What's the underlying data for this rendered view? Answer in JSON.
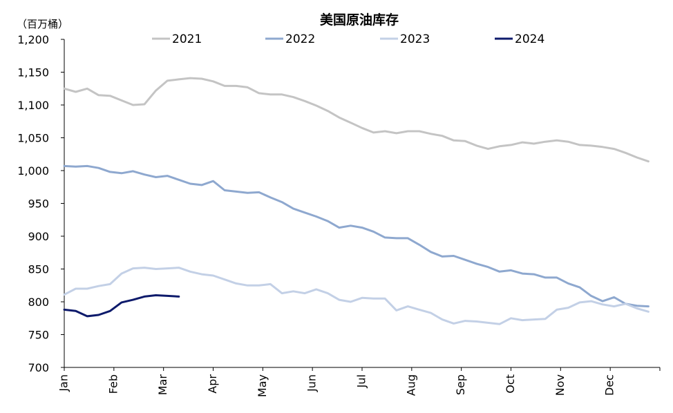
{
  "chart_data": {
    "type": "line",
    "title": "美国原油库存",
    "ylabel": "（百万桶）",
    "ylim": [
      700,
      1200
    ],
    "yticks": [
      700,
      750,
      800,
      850,
      900,
      950,
      1000,
      1050,
      1100,
      1150,
      1200
    ],
    "ytick_labels": [
      "700",
      "750",
      "800",
      "850",
      "900",
      "950",
      "1,000",
      "1,050",
      "1,100",
      "1,150",
      "1,200"
    ],
    "x_unit": "week_of_year",
    "xlim": [
      1,
      53
    ],
    "month_labels": [
      "Jan",
      "Feb",
      "Mar",
      "Apr",
      "May",
      "Jun",
      "Jul",
      "Aug",
      "Sep",
      "Oct",
      "Nov",
      "Dec"
    ],
    "grid": false,
    "legend_position": "top",
    "series": [
      {
        "name": "2021",
        "color": "#c4c4c4",
        "values": [
          1125,
          1120,
          1125,
          1115,
          1114,
          1107,
          1100,
          1101,
          1122,
          1137,
          1139,
          1141,
          1140,
          1136,
          1129,
          1129,
          1127,
          1118,
          1116,
          1116,
          1112,
          1106,
          1099,
          1091,
          1081,
          1073,
          1065,
          1058,
          1060,
          1057,
          1060,
          1060,
          1056,
          1053,
          1046,
          1045,
          1038,
          1033,
          1037,
          1039,
          1043,
          1041,
          1044,
          1046,
          1044,
          1039,
          1038,
          1036,
          1033,
          1027,
          1020,
          1014
        ]
      },
      {
        "name": "2022",
        "color": "#8ea8cf",
        "values": [
          1007,
          1006,
          1007,
          1004,
          998,
          996,
          999,
          994,
          990,
          992,
          986,
          980,
          978,
          984,
          970,
          968,
          966,
          967,
          959,
          952,
          942,
          936,
          930,
          923,
          913,
          916,
          913,
          907,
          898,
          897,
          897,
          887,
          876,
          869,
          870,
          864,
          858,
          853,
          846,
          848,
          843,
          842,
          837,
          837,
          828,
          822,
          809,
          801,
          807,
          797,
          794,
          793
        ]
      },
      {
        "name": "2023",
        "color": "#c3d0e6",
        "values": [
          811,
          820,
          820,
          824,
          827,
          843,
          851,
          852,
          850,
          851,
          852,
          846,
          842,
          840,
          834,
          828,
          825,
          825,
          827,
          813,
          816,
          813,
          819,
          813,
          803,
          800,
          806,
          805,
          805,
          787,
          793,
          788,
          783,
          773,
          767,
          771,
          770,
          768,
          766,
          775,
          772,
          773,
          774,
          788,
          791,
          799,
          801,
          796,
          793,
          797,
          790,
          785
        ]
      },
      {
        "name": "2024",
        "color": "#0d1a6b",
        "values": [
          788,
          786,
          778,
          780,
          786,
          799,
          803,
          808,
          810,
          809,
          808
        ]
      }
    ]
  }
}
